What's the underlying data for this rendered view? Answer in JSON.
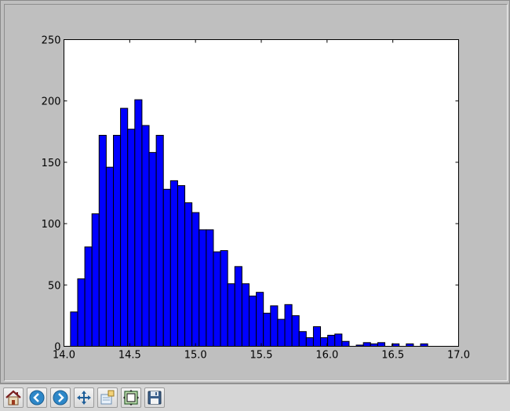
{
  "toolbar": {
    "buttons": [
      {
        "name": "home",
        "icon": "home-icon"
      },
      {
        "name": "back",
        "icon": "arrow-left-icon"
      },
      {
        "name": "forward",
        "icon": "arrow-right-icon"
      },
      {
        "name": "pan",
        "icon": "move-arrows-icon"
      },
      {
        "name": "zoom",
        "icon": "zoom-rect-icon"
      },
      {
        "name": "subplots",
        "icon": "subplots-config-icon"
      },
      {
        "name": "save",
        "icon": "floppy-disk-icon"
      }
    ]
  },
  "colors": {
    "bar_fill": "#0000ff",
    "bar_edge": "#000000",
    "figure_bg": "#bfbfbf",
    "axes_bg": "#ffffff"
  },
  "chart_data": {
    "type": "bar",
    "title": "",
    "xlabel": "",
    "ylabel": "",
    "xlim": [
      14.0,
      17.0
    ],
    "ylim": [
      0,
      250
    ],
    "xticks": [
      14.0,
      14.5,
      15.0,
      15.5,
      16.0,
      16.5,
      17.0
    ],
    "xtick_labels": [
      "14.0",
      "14.5",
      "15.0",
      "15.5",
      "16.0",
      "16.5",
      "17.0"
    ],
    "yticks": [
      0,
      50,
      100,
      150,
      200,
      250
    ],
    "ytick_labels": [
      "0",
      "50",
      "100",
      "150",
      "200",
      "250"
    ],
    "grid": false,
    "bin_width": 0.0543,
    "bin_start": 14.05,
    "values": [
      28,
      55,
      81,
      108,
      172,
      146,
      172,
      194,
      177,
      201,
      180,
      158,
      172,
      128,
      135,
      131,
      117,
      109,
      95,
      95,
      77,
      78,
      51,
      65,
      51,
      41,
      44,
      27,
      33,
      22,
      34,
      25,
      12,
      7,
      16,
      7,
      9,
      10,
      4,
      0,
      1,
      3,
      2,
      3,
      0,
      2,
      0,
      2,
      0,
      2
    ]
  }
}
